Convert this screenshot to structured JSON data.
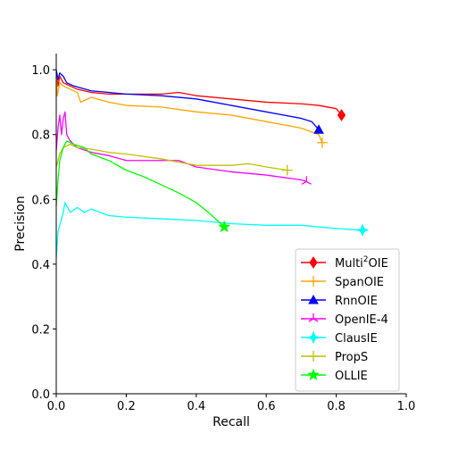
{
  "chart_data": {
    "type": "line",
    "title": "",
    "xlabel": "Recall",
    "ylabel": "Precision",
    "xlim": [
      0.0,
      1.0
    ],
    "ylim": [
      0.0,
      1.05
    ],
    "xticks": [
      "0.0",
      "0.2",
      "0.4",
      "0.6",
      "0.8",
      "1.0"
    ],
    "yticks": [
      "0.0",
      "0.2",
      "0.4",
      "0.6",
      "0.8",
      "1.0"
    ],
    "grid": false,
    "legend": "lower-right",
    "series": [
      {
        "name": "Multi²OIE",
        "name_base": "Multi",
        "name_sup": "2",
        "name_rest": "OIE",
        "color": "#ff0000",
        "marker": "diamond",
        "x": [
          0.0,
          0.005,
          0.01,
          0.02,
          0.04,
          0.06,
          0.1,
          0.15,
          0.2,
          0.3,
          0.35,
          0.4,
          0.5,
          0.6,
          0.7,
          0.75,
          0.8,
          0.815
        ],
        "y": [
          0.99,
          0.95,
          0.98,
          0.96,
          0.95,
          0.94,
          0.93,
          0.925,
          0.925,
          0.925,
          0.93,
          0.92,
          0.91,
          0.9,
          0.895,
          0.89,
          0.88,
          0.86
        ]
      },
      {
        "name": "SpanOIE",
        "color": "#ffa500",
        "marker": "plus",
        "x": [
          0.0,
          0.003,
          0.01,
          0.02,
          0.04,
          0.06,
          0.07,
          0.1,
          0.15,
          0.2,
          0.3,
          0.4,
          0.5,
          0.6,
          0.7,
          0.75,
          0.76
        ],
        "y": [
          0.98,
          0.92,
          0.96,
          0.95,
          0.94,
          0.93,
          0.9,
          0.915,
          0.9,
          0.89,
          0.885,
          0.87,
          0.86,
          0.84,
          0.82,
          0.8,
          0.775
        ]
      },
      {
        "name": "RnnOIE",
        "color": "#0000ff",
        "marker": "triangle",
        "x": [
          0.0,
          0.005,
          0.01,
          0.02,
          0.03,
          0.05,
          0.1,
          0.15,
          0.2,
          0.3,
          0.4,
          0.5,
          0.6,
          0.7,
          0.73,
          0.75
        ],
        "y": [
          1.0,
          0.97,
          0.99,
          0.98,
          0.96,
          0.95,
          0.935,
          0.93,
          0.925,
          0.92,
          0.91,
          0.89,
          0.87,
          0.85,
          0.84,
          0.815
        ]
      },
      {
        "name": "OpenIE-4",
        "color": "#ff00ff",
        "marker": "tri",
        "x": [
          0.0,
          0.005,
          0.01,
          0.015,
          0.02,
          0.025,
          0.03,
          0.04,
          0.06,
          0.1,
          0.15,
          0.2,
          0.3,
          0.35,
          0.4,
          0.5,
          0.6,
          0.7,
          0.715
        ],
        "y": [
          0.75,
          0.82,
          0.86,
          0.8,
          0.85,
          0.87,
          0.8,
          0.78,
          0.76,
          0.745,
          0.735,
          0.72,
          0.72,
          0.72,
          0.7,
          0.685,
          0.675,
          0.66,
          0.655
        ]
      },
      {
        "name": "ClausIE",
        "color": "#00ffff",
        "marker": "star4",
        "x": [
          0.0,
          0.005,
          0.01,
          0.02,
          0.025,
          0.04,
          0.06,
          0.08,
          0.1,
          0.15,
          0.2,
          0.3,
          0.4,
          0.5,
          0.6,
          0.7,
          0.8,
          0.875
        ],
        "y": [
          0.42,
          0.5,
          0.52,
          0.56,
          0.59,
          0.56,
          0.575,
          0.56,
          0.57,
          0.55,
          0.545,
          0.54,
          0.535,
          0.525,
          0.52,
          0.52,
          0.51,
          0.505
        ]
      },
      {
        "name": "PropS",
        "color": "#c0c000",
        "marker": "plus",
        "x": [
          0.0,
          0.005,
          0.01,
          0.02,
          0.04,
          0.06,
          0.1,
          0.15,
          0.2,
          0.3,
          0.35,
          0.4,
          0.5,
          0.55,
          0.6,
          0.66
        ],
        "y": [
          0.7,
          0.72,
          0.74,
          0.76,
          0.77,
          0.76,
          0.755,
          0.745,
          0.74,
          0.725,
          0.715,
          0.705,
          0.705,
          0.71,
          0.7,
          0.69
        ]
      },
      {
        "name": "OLLIE",
        "color": "#00ff00",
        "marker": "star",
        "x": [
          0.0,
          0.005,
          0.01,
          0.02,
          0.03,
          0.05,
          0.08,
          0.1,
          0.15,
          0.2,
          0.25,
          0.3,
          0.35,
          0.4,
          0.44,
          0.47,
          0.48
        ],
        "y": [
          0.58,
          0.66,
          0.72,
          0.76,
          0.78,
          0.77,
          0.76,
          0.74,
          0.72,
          0.69,
          0.67,
          0.645,
          0.62,
          0.59,
          0.555,
          0.525,
          0.515
        ]
      }
    ]
  }
}
